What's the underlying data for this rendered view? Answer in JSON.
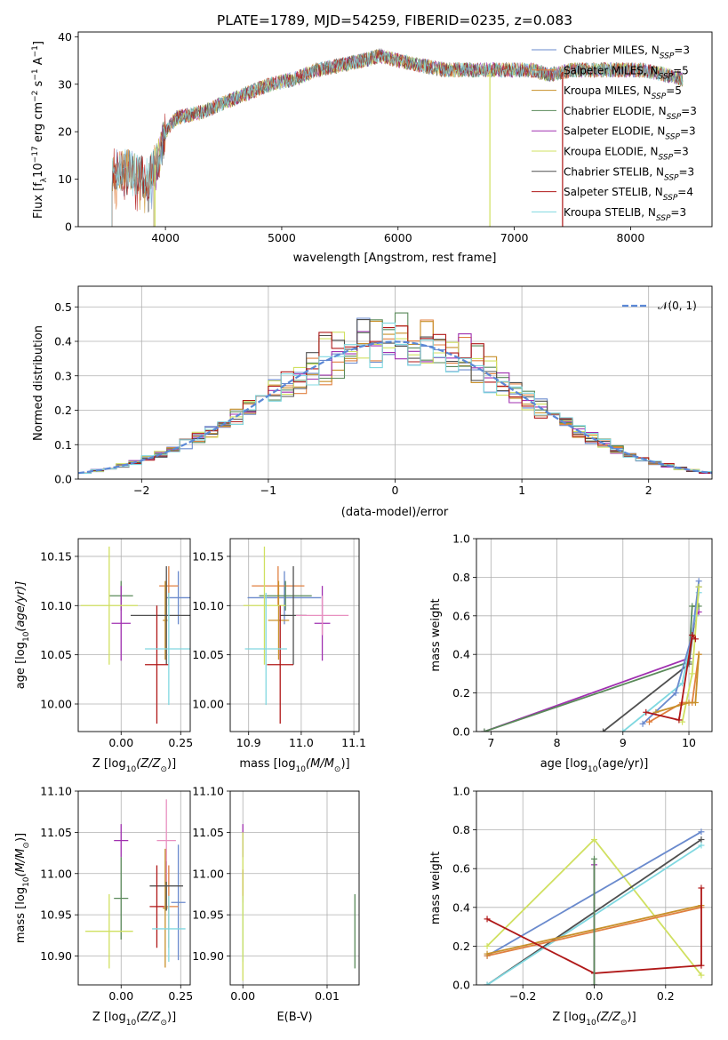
{
  "colors": {
    "Chabrier MILES": "#6a8acd",
    "Salpeter MILES": "#e08040",
    "Kroupa MILES": "#c8902a",
    "Chabrier ELODIE": "#5a8a5a",
    "Salpeter ELODIE": "#a030b0",
    "Kroupa ELODIE": "#d0e060",
    "Chabrier STELIB": "#505050",
    "Salpeter STELIB": "#b01818",
    "Kroupa STELIB": "#80d8e0",
    "gauss": "#5b88d6"
  },
  "chart_data": [
    {
      "id": "spectrum",
      "type": "line",
      "title": "PLATE=1789, MJD=54259, FIBERID=0235, z=0.083",
      "xlabel": "wavelength [Angstrom, rest frame]",
      "ylabel": "Flux [fλ10⁻¹⁷ erg cm⁻² s⁻¹ A⁻¹]",
      "xlim": [
        3250,
        8700
      ],
      "ylim": [
        0,
        41
      ],
      "xticks": [
        "4000",
        "5000",
        "6000",
        "7000",
        "8000"
      ],
      "yticks": [
        "0",
        "10",
        "20",
        "30",
        "40"
      ],
      "legend_position": "upper right",
      "series": [
        {
          "name": "Chabrier MILES, N",
          "sub": "SSP",
          "tail": "=3",
          "key": "Chabrier MILES",
          "start": 3540
        },
        {
          "name": "Salpeter MILES, N",
          "sub": "SSP",
          "tail": "=5",
          "key": "Salpeter MILES",
          "start": 3540
        },
        {
          "name": "Kroupa MILES, N",
          "sub": "SSP",
          "tail": "=5",
          "key": "Kroupa MILES",
          "start": 3540
        },
        {
          "name": "Chabrier ELODIE, N",
          "sub": "SSP",
          "tail": "=3",
          "key": "Chabrier ELODIE",
          "start": 3900
        },
        {
          "name": "Salpeter ELODIE, N",
          "sub": "SSP",
          "tail": "=3",
          "key": "Salpeter ELODIE",
          "start": 3900
        },
        {
          "name": "Kroupa ELODIE, N",
          "sub": "SSP",
          "tail": "=3",
          "key": "Kroupa ELODIE",
          "start": 3900
        },
        {
          "name": "Chabrier STELIB, N",
          "sub": "SSP",
          "tail": "=3",
          "key": "Chabrier STELIB",
          "start": 3540
        },
        {
          "name": "Salpeter STELIB, N",
          "sub": "SSP",
          "tail": "=4",
          "key": "Salpeter STELIB",
          "start": 3540
        },
        {
          "name": "Kroupa STELIB, N",
          "sub": "SSP",
          "tail": "=3",
          "key": "Kroupa STELIB",
          "start": 3540
        }
      ],
      "continuum": {
        "x": [
          3540,
          3700,
          3850,
          3950,
          4000,
          4100,
          4300,
          4500,
          4700,
          4900,
          5100,
          5300,
          5500,
          5700,
          5850,
          6000,
          6200,
          6400,
          6600,
          6800,
          7000,
          7150,
          7300,
          7500,
          7700,
          7900,
          8100,
          8300,
          8450
        ],
        "y": [
          12,
          12,
          10,
          15,
          20,
          23,
          24,
          26,
          28,
          30,
          31,
          33,
          34,
          35,
          36,
          35,
          34,
          33,
          33,
          33,
          33,
          33,
          32,
          33,
          33,
          33,
          33,
          32,
          31
        ]
      },
      "spikes": [
        {
          "x": 3910,
          "y": 0,
          "key": "Kroupa ELODIE"
        },
        {
          "x": 6790,
          "y": 0,
          "key": "Kroupa ELODIE"
        },
        {
          "x": 7415,
          "y": 0,
          "key": "Salpeter STELIB"
        }
      ]
    },
    {
      "id": "residuals",
      "type": "step",
      "xlabel": "(data-model)/error",
      "ylabel": "Normed distribution",
      "xlim": [
        -2.5,
        2.5
      ],
      "ylim": [
        0,
        0.56
      ],
      "xticks": [
        "−2",
        "−1",
        "0",
        "1",
        "2"
      ],
      "yticks": [
        "0.0",
        "0.1",
        "0.2",
        "0.3",
        "0.4",
        "0.5"
      ],
      "legend_label": "𝒩(0, 1)",
      "legend_position": "upper right",
      "gaussian": {
        "mu": 0,
        "sigma": 1
      },
      "bin_width": 0.1
    },
    {
      "id": "age-Z",
      "type": "errorbar",
      "xlabel_main": "Z [log",
      "xlabel_sub": "10",
      "xlabel_tail": "(Z/Z",
      "xlabel_sun": "⊙",
      "xlabel_end": ")]",
      "ylabel_main": "age  [log",
      "ylabel_sub": "10",
      "ylabel_tail": "(age/yr)]",
      "xlim": [
        -0.18,
        0.29
      ],
      "ylim": [
        9.972,
        10.168
      ],
      "xticks": [
        "0.00",
        "0.25"
      ],
      "yticks": [
        "10.00",
        "10.05",
        "10.10",
        "10.15"
      ],
      "points": [
        {
          "key": "Chabrier MILES",
          "x": 0.24,
          "xe": 0.05,
          "y": 10.108,
          "ye": 0.027
        },
        {
          "key": "Salpeter MILES",
          "x": 0.2,
          "xe": 0.04,
          "y": 10.12,
          "ye": 0.02
        },
        {
          "key": "Kroupa MILES",
          "x": 0.185,
          "xe": 0.01,
          "y": 10.085,
          "ye": 0.04
        },
        {
          "key": "Chabrier ELODIE",
          "x": 0.0,
          "xe": 0.05,
          "y": 10.11,
          "ye": 0.015
        },
        {
          "key": "Salpeter ELODIE",
          "x": 0.0,
          "xe": 0.04,
          "y": 10.082,
          "ye": 0.038
        },
        {
          "key": "Kroupa ELODIE",
          "x": -0.05,
          "xe": 0.12,
          "y": 10.1,
          "ye": 0.06
        },
        {
          "key": "Chabrier STELIB",
          "x": 0.19,
          "xe": 0.15,
          "y": 10.09,
          "ye": 0.05
        },
        {
          "key": "Salpeter STELIB",
          "x": 0.15,
          "xe": 0.05,
          "y": 10.04,
          "ye": 0.06
        },
        {
          "key": "Kroupa STELIB",
          "x": 0.2,
          "xe": 0.1,
          "y": 10.056,
          "ye": 0.057
        }
      ]
    },
    {
      "id": "age-mass",
      "type": "errorbar",
      "xlabel_main": "mass [log",
      "xlabel_sub": "10",
      "xlabel_tail": "(M/M",
      "xlabel_sun": "⊙",
      "xlabel_end": ")]",
      "xlim": [
        10.865,
        11.11
      ],
      "ylim": [
        9.972,
        10.168
      ],
      "xticks": [
        "10.9",
        "11.0",
        "11.1"
      ],
      "yticks": [
        "10.00",
        "10.05",
        "10.10",
        "10.15"
      ],
      "points": [
        {
          "key": "Chabrier MILES",
          "x": 10.968,
          "xe": 0.07,
          "y": 10.108,
          "ye": 0.027
        },
        {
          "key": "Salpeter MILES",
          "x": 10.956,
          "xe": 0.05,
          "y": 10.12,
          "ye": 0.02
        },
        {
          "key": "Kroupa MILES",
          "x": 10.957,
          "xe": 0.02,
          "y": 10.085,
          "ye": 0.04
        },
        {
          "key": "Chabrier ELODIE",
          "x": 10.97,
          "xe": 0.05,
          "y": 10.11,
          "ye": 0.015
        },
        {
          "key": "Salpeter ELODIE",
          "x": 11.04,
          "xe": 0.015,
          "y": 10.082,
          "ye": 0.038
        },
        {
          "key": "Kroupa ELODIE",
          "x": 10.93,
          "xe": 0.04,
          "y": 10.1,
          "ye": 0.06
        },
        {
          "key": "Chabrier STELIB",
          "x": 10.985,
          "xe": 0.025,
          "y": 10.09,
          "ye": 0.05
        },
        {
          "key": "Salpeter STELIB",
          "x": 10.96,
          "xe": 0.025,
          "y": 10.04,
          "ye": 0.06
        },
        {
          "key": "Kroupa STELIB",
          "x": 10.933,
          "xe": 0.04,
          "y": 10.056,
          "ye": 0.057
        }
      ],
      "extra_pink": {
        "x": 11.04,
        "xe": 0.05,
        "y": 10.09,
        "ye": 0.02
      }
    },
    {
      "id": "weight-age",
      "type": "line",
      "xlabel_main": "age  [log",
      "xlabel_sub": "10",
      "xlabel_tail": "(age/yr)]",
      "ylabel": "mass weight",
      "xlim": [
        6.78,
        10.35
      ],
      "ylim": [
        0,
        1.0
      ],
      "xticks": [
        "7",
        "8",
        "9",
        "10"
      ],
      "yticks": [
        "0.0",
        "0.2",
        "0.4",
        "0.6",
        "0.8",
        "1.0"
      ],
      "series": [
        {
          "key": "Salpeter ELODIE",
          "x": [
            6.9,
            10.0,
            10.1,
            10.15
          ],
          "y": [
            0.0,
            0.38,
            0.6,
            0.62
          ]
        },
        {
          "key": "Chabrier ELODIE",
          "x": [
            6.9,
            10.0,
            10.05,
            10.15
          ],
          "y": [
            0.0,
            0.36,
            0.65,
            0.65
          ]
        },
        {
          "key": "Chabrier STELIB",
          "x": [
            8.7,
            10.0,
            10.15
          ],
          "y": [
            0.0,
            0.35,
            0.75
          ]
        },
        {
          "key": "Kroupa STELIB",
          "x": [
            9.0,
            9.9,
            10.1,
            10.15
          ],
          "y": [
            0.0,
            0.25,
            0.6,
            0.72
          ]
        },
        {
          "key": "Chabrier MILES",
          "x": [
            9.3,
            9.8,
            10.05,
            10.15
          ],
          "y": [
            0.04,
            0.2,
            0.5,
            0.78
          ]
        },
        {
          "key": "Kroupa ELODIE",
          "x": [
            9.9,
            10.05,
            10.15
          ],
          "y": [
            0.05,
            0.3,
            0.75
          ]
        },
        {
          "key": "Salpeter MILES",
          "x": [
            9.4,
            9.9,
            10.05,
            10.15
          ],
          "y": [
            0.05,
            0.15,
            0.15,
            0.4
          ]
        },
        {
          "key": "Kroupa MILES",
          "x": [
            9.5,
            10.0,
            10.1,
            10.15
          ],
          "y": [
            0.1,
            0.15,
            0.15,
            0.4
          ]
        },
        {
          "key": "Salpeter STELIB",
          "x": [
            9.35,
            9.85,
            10.05,
            10.1
          ],
          "y": [
            0.1,
            0.06,
            0.5,
            0.48
          ]
        }
      ]
    },
    {
      "id": "mass-Z",
      "type": "errorbar",
      "xlabel_main": "Z [log",
      "xlabel_sub": "10",
      "xlabel_tail": "(Z/Z",
      "xlabel_sun": "⊙",
      "xlabel_end": ")]",
      "ylabel_main": "mass [log",
      "ylabel_sub": "10",
      "ylabel_tail": "(M/M",
      "ylabel_sun": "⊙",
      "ylabel_end": ")]",
      "xlim": [
        -0.18,
        0.29
      ],
      "ylim": [
        10.865,
        11.1
      ],
      "xticks": [
        "0.00",
        "0.25"
      ],
      "yticks": [
        "10.90",
        "10.95",
        "11.00",
        "11.05",
        "11.10"
      ],
      "points": [
        {
          "key": "Chabrier MILES",
          "x": 0.24,
          "xe": 0.03,
          "y": 10.965,
          "ye": 0.07
        },
        {
          "key": "Salpeter MILES",
          "x": 0.2,
          "xe": 0.04,
          "y": 10.96,
          "ye": 0.05
        },
        {
          "key": "Kroupa MILES",
          "x": 0.185,
          "xe": 0.01,
          "y": 10.958,
          "ye": 0.072
        },
        {
          "key": "Chabrier ELODIE",
          "x": 0.0,
          "xe": 0.03,
          "y": 10.97,
          "ye": 0.05
        },
        {
          "key": "Salpeter ELODIE",
          "x": 0.0,
          "xe": 0.03,
          "y": 11.04,
          "ye": 0.02
        },
        {
          "key": "Kroupa ELODIE",
          "x": -0.05,
          "xe": 0.1,
          "y": 10.93,
          "ye": 0.045
        },
        {
          "key": "Chabrier STELIB",
          "x": 0.19,
          "xe": 0.07,
          "y": 10.985,
          "ye": 0.03
        },
        {
          "key": "Salpeter STELIB",
          "x": 0.15,
          "xe": 0.03,
          "y": 10.96,
          "ye": 0.05
        },
        {
          "key": "Kroupa STELIB",
          "x": 0.2,
          "xe": 0.07,
          "y": 10.933,
          "ye": 0.04
        }
      ],
      "extra_pink": {
        "x": 0.19,
        "xe": 0.04,
        "y": 11.04,
        "ye": 0.05
      }
    },
    {
      "id": "mass-EBV",
      "type": "errorbar",
      "xlabel": "E(B-V)",
      "xlim": [
        -0.0015,
        0.0138
      ],
      "ylim": [
        10.865,
        11.1
      ],
      "xticks": [
        "0.00",
        "0.01"
      ],
      "yticks": [
        "10.90",
        "10.95",
        "11.00",
        "11.05",
        "11.10"
      ],
      "points": [
        {
          "key": "Salpeter ELODIE",
          "x": 0.0,
          "xe": 0.0,
          "y": 11.04,
          "ye": 0.02
        },
        {
          "key": "Salpeter STELIB",
          "x": 0.0,
          "xe": 0.0,
          "y": 10.985,
          "ye": 0.02
        },
        {
          "key": "Kroupa STELIB",
          "x": 0.0,
          "xe": 0.0,
          "y": 10.933,
          "ye": 0.04
        },
        {
          "key": "Kroupa ELODIE",
          "x": 0.0,
          "xe": 0.0,
          "y": 10.96,
          "ye": 0.09
        },
        {
          "key": "Chabrier ELODIE",
          "x": 0.0133,
          "xe": 0.0,
          "y": 10.93,
          "ye": 0.045
        }
      ]
    },
    {
      "id": "weight-Z",
      "type": "line",
      "xlabel_main": "Z [log",
      "xlabel_sub": "10",
      "xlabel_tail": "(Z/Z",
      "xlabel_sun": "⊙",
      "xlabel_end": ")]",
      "ylabel": "mass weight",
      "xlim": [
        -0.33,
        0.33
      ],
      "ylim": [
        0,
        1.0
      ],
      "xticks": [
        "−0.2",
        "0.0",
        "0.2"
      ],
      "yticks": [
        "0.0",
        "0.2",
        "0.4",
        "0.6",
        "0.8",
        "1.0"
      ],
      "series": [
        {
          "key": "Kroupa ELODIE",
          "x": [
            -0.3,
            0.0,
            0.3
          ],
          "y": [
            0.2,
            0.75,
            0.05
          ]
        },
        {
          "key": "Chabrier MILES",
          "x": [
            -0.3,
            0.3
          ],
          "y": [
            0.15,
            0.79
          ]
        },
        {
          "key": "Chabrier STELIB",
          "x": [
            -0.3,
            0.3
          ],
          "y": [
            0.0,
            0.75
          ]
        },
        {
          "key": "Kroupa STELIB",
          "x": [
            -0.3,
            0.3
          ],
          "y": [
            0.0,
            0.72
          ]
        },
        {
          "key": "Salpeter MILES",
          "x": [
            -0.3,
            0.3
          ],
          "y": [
            0.15,
            0.4
          ]
        },
        {
          "key": "Kroupa MILES",
          "x": [
            -0.3,
            0.3
          ],
          "y": [
            0.16,
            0.41
          ]
        },
        {
          "key": "Salpeter STELIB",
          "x": [
            -0.3,
            0.0,
            0.3,
            0.3
          ],
          "y": [
            0.34,
            0.06,
            0.1,
            0.5
          ]
        },
        {
          "key": "Salpeter ELODIE",
          "x": [
            0.0,
            0.0
          ],
          "y": [
            0.0,
            0.62
          ]
        },
        {
          "key": "Chabrier ELODIE",
          "x": [
            0.0,
            0.0
          ],
          "y": [
            0.0,
            0.65
          ]
        }
      ]
    }
  ]
}
